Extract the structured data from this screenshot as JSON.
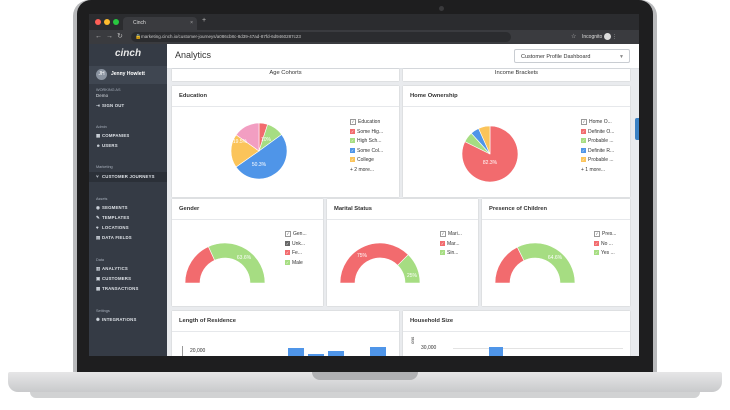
{
  "browser": {
    "tab_title": "Cinch",
    "tab_close": "×",
    "new_tab": "+",
    "url": "marketing.cinch.io/customer-journeys/a086cb8c-8d39-47ad-87fd-6d9460287c23",
    "incognito_label": "Incognito",
    "colors": {
      "close": "#fe5f57",
      "min": "#febc2e",
      "max": "#28c840"
    }
  },
  "sidebar": {
    "logo": "cinch",
    "user_initials": "JH",
    "user_name": "Jenny Howlett",
    "working_as_label": "WORKING AS",
    "working_as_value": "Demo",
    "sign_out": "SIGN OUT",
    "sections": [
      {
        "title": "Admin",
        "items": [
          "COMPANIES",
          "USERS"
        ]
      },
      {
        "title": "Marketing",
        "items": [
          "CUSTOMER JOURNEYS"
        ]
      },
      {
        "title": "Assets",
        "items": [
          "SEGMENTS",
          "TEMPLATES",
          "LOCATIONS",
          "DATA FIELDS"
        ]
      },
      {
        "title": "Data",
        "items": [
          "ANALYTICS",
          "CUSTOMERS",
          "TRANSACTIONS"
        ]
      },
      {
        "title": "Settings",
        "items": [
          "INTEGRATIONS"
        ]
      }
    ]
  },
  "header": {
    "title": "Analytics",
    "dashboard_select": "Customer Profile Dashboard"
  },
  "cards": {
    "age_cohorts": {
      "title": "Age Cohorts"
    },
    "income_brackets": {
      "title": "Income Brackets"
    },
    "education": {
      "title": "Education",
      "legend": [
        "Education",
        "Some Hig...",
        "High Sch...",
        "Some Col...",
        "College",
        "+ 2 more..."
      ],
      "slices": [
        {
          "label": "Some High School",
          "value": 5,
          "color": "#f26b6e"
        },
        {
          "label": "High School",
          "value": 10,
          "color": "#a6dd82"
        },
        {
          "label": "Some College",
          "value": 50.3,
          "color": "#4f95e8"
        },
        {
          "label": "College",
          "value": 19.5,
          "color": "#fbc45a"
        },
        {
          "label": "Other",
          "value": 15.2,
          "color": "#f29ec2"
        }
      ],
      "labels": [
        "19.5%",
        "10%",
        "50.3%"
      ]
    },
    "home_ownership": {
      "title": "Home Ownership",
      "legend": [
        "Home O...",
        "Definite O...",
        "Probable ...",
        "Definite R...",
        "Probable ...",
        "+ 1 more..."
      ],
      "slices": [
        {
          "label": "Definite Owner",
          "value": 82.3,
          "color": "#f26b6e"
        },
        {
          "label": "Probable Owner",
          "value": 6,
          "color": "#a6dd82"
        },
        {
          "label": "Definite Renter",
          "value": 5,
          "color": "#4f95e8"
        },
        {
          "label": "Probable Renter",
          "value": 6.7,
          "color": "#fbc45a"
        }
      ],
      "labels": [
        "82.3%"
      ]
    },
    "gender": {
      "title": "Gender",
      "legend": [
        "Gen...",
        "Unk...",
        "Fe...",
        "Male"
      ],
      "segments": [
        {
          "value": 36.4,
          "color": "#f26b6e"
        },
        {
          "value": 63.6,
          "color": "#a6dd82"
        }
      ],
      "label": "63.6%"
    },
    "marital": {
      "title": "Marital Status",
      "legend": [
        "Mari...",
        "Mar...",
        "Sin..."
      ],
      "segments": [
        {
          "value": 75,
          "color": "#f26b6e"
        },
        {
          "value": 25,
          "color": "#a6dd82"
        }
      ],
      "labels": [
        "75%",
        "25%"
      ]
    },
    "children": {
      "title": "Presence of Children",
      "legend": [
        "Pres...",
        "No ...",
        "Yes ..."
      ],
      "segments": [
        {
          "value": 35.4,
          "color": "#f26b6e"
        },
        {
          "value": 64.6,
          "color": "#a6dd82"
        }
      ],
      "label": "64.6%"
    },
    "residence": {
      "title": "Length of Residence",
      "ytick": "20,000"
    },
    "household": {
      "title": "Household Size",
      "ytick": "30,000",
      "axis_label": "ons"
    }
  }
}
